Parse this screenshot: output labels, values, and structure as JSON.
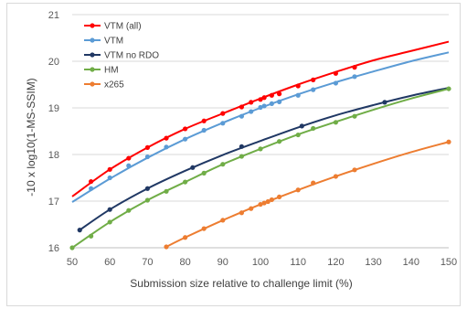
{
  "chart_data": {
    "type": "line",
    "xlabel": "Submission  size relative to challenge limit (%)",
    "ylabel": "-10 x log10(1-MS-SSIM)",
    "xlim": [
      50,
      150
    ],
    "ylim": [
      16,
      21
    ],
    "xticks": [
      50,
      60,
      70,
      80,
      90,
      100,
      110,
      120,
      130,
      140,
      150
    ],
    "yticks": [
      16,
      17,
      18,
      19,
      20,
      21
    ],
    "grid": "horizontal",
    "legend_position": "top-left",
    "series": [
      {
        "name": "VTM (all)",
        "color": "#ff0000",
        "points": [
          [
            55,
            17.42
          ],
          [
            60,
            17.68
          ],
          [
            65,
            17.92
          ],
          [
            70,
            18.15
          ],
          [
            75,
            18.35
          ],
          [
            80,
            18.55
          ],
          [
            85,
            18.72
          ],
          [
            90,
            18.88
          ],
          [
            95,
            19.02
          ],
          [
            97.5,
            19.12
          ],
          [
            100,
            19.18
          ],
          [
            101,
            19.22
          ],
          [
            103,
            19.27
          ],
          [
            105,
            19.3
          ],
          [
            110,
            19.47
          ],
          [
            114,
            19.6
          ],
          [
            120,
            19.74
          ],
          [
            125,
            19.87
          ]
        ],
        "fit": [
          [
            50,
            17.1
          ],
          [
            60,
            17.68
          ],
          [
            70,
            18.15
          ],
          [
            80,
            18.55
          ],
          [
            90,
            18.88
          ],
          [
            100,
            19.2
          ],
          [
            110,
            19.5
          ],
          [
            120,
            19.77
          ],
          [
            130,
            20.02
          ],
          [
            140,
            20.22
          ],
          [
            150,
            20.42
          ]
        ]
      },
      {
        "name": "VTM",
        "color": "#5b9bd5",
        "points": [
          [
            55,
            17.27
          ],
          [
            60,
            17.5
          ],
          [
            65,
            17.76
          ],
          [
            70,
            17.95
          ],
          [
            75,
            18.16
          ],
          [
            80,
            18.33
          ],
          [
            85,
            18.52
          ],
          [
            90,
            18.67
          ],
          [
            95,
            18.82
          ],
          [
            97.5,
            18.92
          ],
          [
            100,
            19.01
          ],
          [
            101,
            19.04
          ],
          [
            103,
            19.09
          ],
          [
            105,
            19.13
          ],
          [
            110,
            19.27
          ],
          [
            114,
            19.39
          ],
          [
            120,
            19.53
          ],
          [
            125,
            19.67
          ]
        ],
        "fit": [
          [
            50,
            16.98
          ],
          [
            60,
            17.48
          ],
          [
            70,
            17.93
          ],
          [
            80,
            18.33
          ],
          [
            90,
            18.68
          ],
          [
            100,
            19.0
          ],
          [
            110,
            19.29
          ],
          [
            120,
            19.55
          ],
          [
            130,
            19.78
          ],
          [
            140,
            20.0
          ],
          [
            150,
            20.19
          ]
        ]
      },
      {
        "name": "VTM no RDO",
        "color": "#203864",
        "points": [
          [
            52,
            16.38
          ],
          [
            60,
            16.82
          ],
          [
            70,
            17.27
          ],
          [
            82,
            17.72
          ],
          [
            95,
            18.17
          ],
          [
            111,
            18.61
          ],
          [
            133,
            19.12
          ]
        ],
        "fit": [
          [
            52,
            16.38
          ],
          [
            60,
            16.82
          ],
          [
            70,
            17.27
          ],
          [
            80,
            17.65
          ],
          [
            90,
            17.99
          ],
          [
            100,
            18.29
          ],
          [
            110,
            18.58
          ],
          [
            120,
            18.84
          ],
          [
            130,
            19.06
          ],
          [
            140,
            19.26
          ],
          [
            150,
            19.43
          ]
        ]
      },
      {
        "name": "HM",
        "color": "#70ad47",
        "points": [
          [
            50,
            16.0
          ],
          [
            55,
            16.25
          ],
          [
            60,
            16.55
          ],
          [
            65,
            16.8
          ],
          [
            70,
            17.02
          ],
          [
            75,
            17.21
          ],
          [
            80,
            17.41
          ],
          [
            85,
            17.6
          ],
          [
            90,
            17.79
          ],
          [
            95,
            17.96
          ],
          [
            100,
            18.12
          ],
          [
            105,
            18.28
          ],
          [
            110,
            18.42
          ],
          [
            114,
            18.56
          ],
          [
            120,
            18.69
          ],
          [
            125,
            18.82
          ],
          [
            150,
            19.41
          ]
        ],
        "fit": [
          [
            50,
            16.0
          ],
          [
            60,
            16.55
          ],
          [
            70,
            17.02
          ],
          [
            80,
            17.41
          ],
          [
            90,
            17.79
          ],
          [
            100,
            18.12
          ],
          [
            110,
            18.43
          ],
          [
            120,
            18.7
          ],
          [
            130,
            18.96
          ],
          [
            140,
            19.2
          ],
          [
            150,
            19.41
          ]
        ]
      },
      {
        "name": "x265",
        "color": "#ed7d31",
        "points": [
          [
            75,
            16.02
          ],
          [
            80,
            16.22
          ],
          [
            85,
            16.41
          ],
          [
            90,
            16.59
          ],
          [
            95,
            16.75
          ],
          [
            97.5,
            16.84
          ],
          [
            100,
            16.93
          ],
          [
            101,
            16.96
          ],
          [
            102,
            16.99
          ],
          [
            103,
            17.03
          ],
          [
            105,
            17.09
          ],
          [
            110,
            17.24
          ],
          [
            114,
            17.39
          ],
          [
            120,
            17.53
          ],
          [
            125,
            17.67
          ],
          [
            150,
            18.27
          ]
        ],
        "fit": [
          [
            75,
            16.02
          ],
          [
            80,
            16.22
          ],
          [
            90,
            16.59
          ],
          [
            100,
            16.93
          ],
          [
            110,
            17.24
          ],
          [
            120,
            17.53
          ],
          [
            130,
            17.8
          ],
          [
            140,
            18.05
          ],
          [
            150,
            18.27
          ]
        ]
      }
    ]
  }
}
